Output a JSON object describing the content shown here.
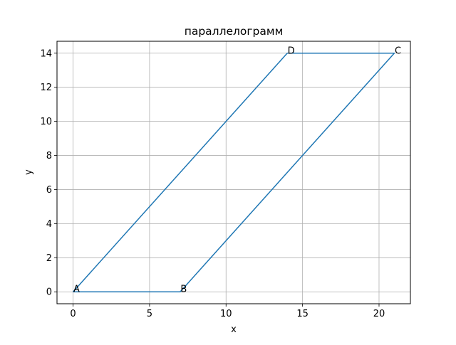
{
  "chart_data": {
    "type": "line",
    "title": "параллелограмм",
    "xlabel": "x",
    "ylabel": "y",
    "xlim": [
      -1.05,
      22.05
    ],
    "ylim": [
      -0.7,
      14.7
    ],
    "xticks": [
      0,
      5,
      10,
      15,
      20
    ],
    "yticks": [
      0,
      2,
      4,
      6,
      8,
      10,
      12,
      14
    ],
    "grid": true,
    "color": "#1f77b4",
    "series": [
      {
        "x": [
          0,
          7,
          21,
          14,
          0
        ],
        "y": [
          0,
          0,
          14,
          14,
          0
        ]
      }
    ],
    "annotations": [
      {
        "text": "A",
        "x": 0,
        "y": 0
      },
      {
        "text": "B",
        "x": 7,
        "y": 0
      },
      {
        "text": "C",
        "x": 21,
        "y": 14
      },
      {
        "text": "D",
        "x": 14,
        "y": 14
      }
    ]
  }
}
